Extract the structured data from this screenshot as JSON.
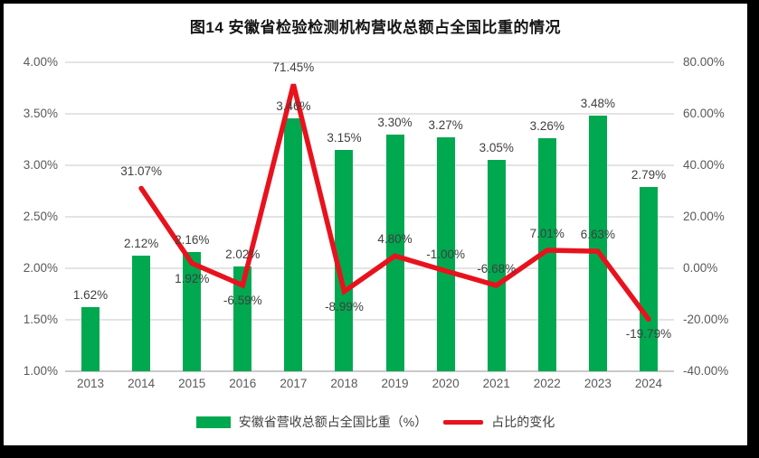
{
  "accent_colors": {
    "bar_green": "#00A850",
    "line_red": "#E8121D",
    "gridline": "#E4E4E4",
    "axis_text": "#595959",
    "label_text": "#3F3F3F"
  },
  "chart_data": {
    "type": "combo_bar_line",
    "title": "图14 安徽省检验检测机构营收总额占全国比重的情况",
    "categories": [
      "2013",
      "2014",
      "2015",
      "2016",
      "2017",
      "2018",
      "2019",
      "2020",
      "2021",
      "2022",
      "2023",
      "2024"
    ],
    "series": [
      {
        "name": "安徽省营收总额占全国比重（%）",
        "type": "bar",
        "axis": "left",
        "color": "#00A850",
        "values": [
          1.62,
          2.12,
          2.16,
          2.02,
          3.46,
          3.15,
          3.3,
          3.27,
          3.05,
          3.26,
          3.48,
          2.79
        ],
        "labels": [
          "1.62%",
          "2.12%",
          "2.16%",
          "2.02%",
          "3.46%",
          "3.15%",
          "3.30%",
          "3.27%",
          "3.05%",
          "3.26%",
          "3.48%",
          "2.79%"
        ]
      },
      {
        "name": "占比的变化",
        "type": "line",
        "axis": "right",
        "color": "#E8121D",
        "values": [
          null,
          31.07,
          1.92,
          -6.59,
          71.45,
          -8.99,
          4.8,
          -1.0,
          -6.68,
          7.01,
          6.63,
          -19.79
        ],
        "labels": [
          null,
          "31.07%",
          "1.92%",
          "-6.59%",
          "71.45%",
          "-8.99%",
          "4.80%",
          "-1.00%",
          "-6.68%",
          "7.01%",
          "6.63%",
          "-19.79%"
        ],
        "label_side": [
          null,
          "above",
          "below",
          "below",
          "above",
          "below",
          "above",
          "above",
          "above",
          "above",
          "above",
          "below"
        ]
      }
    ],
    "left_axis": {
      "min": 1.0,
      "max": 4.0,
      "step": 0.5,
      "tick_labels": [
        "4.00%",
        "3.50%",
        "3.00%",
        "2.50%",
        "2.00%",
        "1.50%",
        "1.00%"
      ]
    },
    "right_axis": {
      "min": -40,
      "max": 80,
      "step": 20,
      "tick_labels": [
        "80.00%",
        "60.00%",
        "40.00%",
        "20.00%",
        "0.00%",
        "-20.00%",
        "-40.00%"
      ]
    },
    "grid": true,
    "legend_position": "bottom"
  }
}
